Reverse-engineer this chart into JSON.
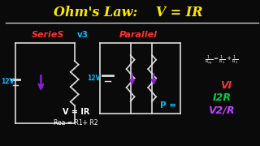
{
  "background_color": "#0a0a0a",
  "title_left": "Ohm's Law:  ",
  "title_right": "V = IR",
  "title_color": "#FFE800",
  "title_fontsize": 11.5,
  "series_text": "SerieS",
  "series_color": "#FF3030",
  "vs_text": "v3",
  "vs_color": "#00BFFF",
  "parallel_text": "Parallel",
  "parallel_color": "#FF3030",
  "label_12v_color": "#00BFFF",
  "veqir_text": "V = IR",
  "veqir_color": "#FFFFFF",
  "req_text": "Rea = R1+ R2",
  "req_color": "#FFFFFF",
  "p_eq_text": "P =",
  "p_eq_color": "#00BFFF",
  "vi_text": "VI",
  "vi_color": "#FF3030",
  "i2r_text": "I2R",
  "i2r_color": "#00CC44",
  "v2r_text": "V2/R",
  "v2r_color": "#BB44FF",
  "divider_color": "#DDDDDD",
  "arrow_color": "#8822CC",
  "circuit_line_color": "#DDDDDD",
  "lw": 1.2
}
